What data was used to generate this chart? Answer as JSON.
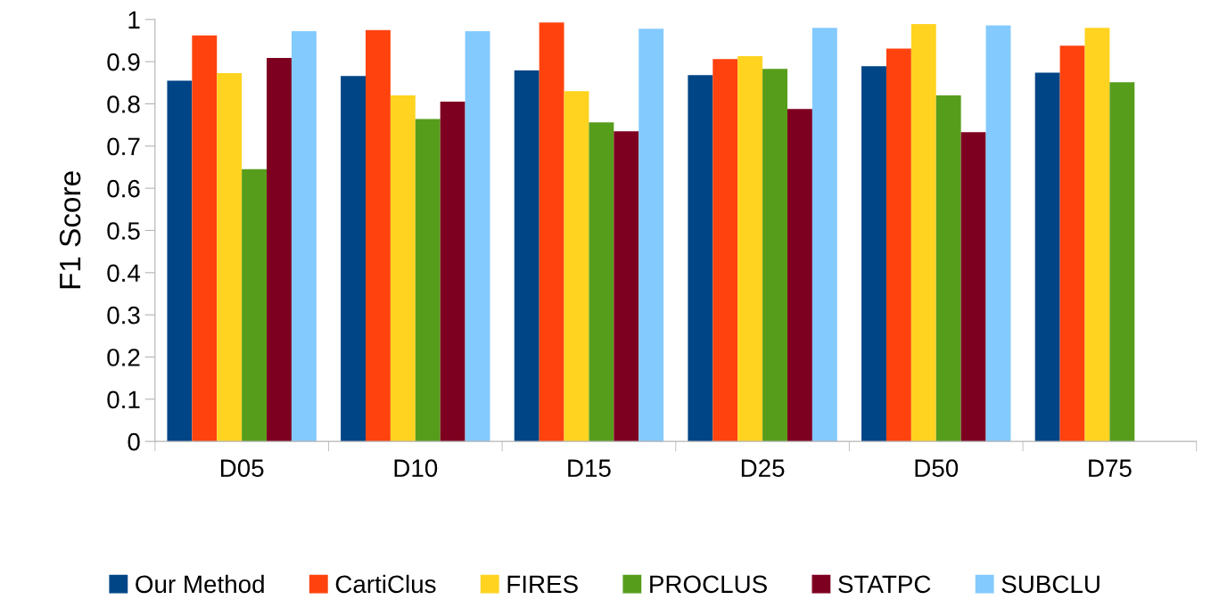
{
  "chart_data": {
    "type": "bar",
    "ylabel": "F1 Score",
    "categories": [
      "D05",
      "D10",
      "D15",
      "D25",
      "D50",
      "D75"
    ],
    "series": [
      {
        "name": "Our Method",
        "color": "#004586",
        "values": [
          0.855,
          0.866,
          0.879,
          0.868,
          0.889,
          0.874
        ]
      },
      {
        "name": "CartiClus",
        "color": "#ff420e",
        "values": [
          0.962,
          0.975,
          0.993,
          0.906,
          0.931,
          0.938
        ]
      },
      {
        "name": "FIRES",
        "color": "#ffd320",
        "values": [
          0.873,
          0.82,
          0.83,
          0.913,
          0.989,
          0.98
        ]
      },
      {
        "name": "PROCLUS",
        "color": "#579d1c",
        "values": [
          0.645,
          0.764,
          0.756,
          0.883,
          0.82,
          0.851
        ]
      },
      {
        "name": "STATPC",
        "color": "#7e0021",
        "values": [
          0.909,
          0.805,
          0.735,
          0.788,
          0.733,
          null
        ]
      },
      {
        "name": "SUBCLU",
        "color": "#83caff",
        "values": [
          0.972,
          0.972,
          0.978,
          0.98,
          0.986,
          null
        ]
      }
    ],
    "ylim": [
      0,
      1
    ],
    "yticks": [
      0,
      0.1,
      0.2,
      0.3,
      0.4,
      0.5,
      0.6,
      0.7,
      0.8,
      0.9,
      1
    ],
    "grid": false,
    "legend": "bottom"
  }
}
